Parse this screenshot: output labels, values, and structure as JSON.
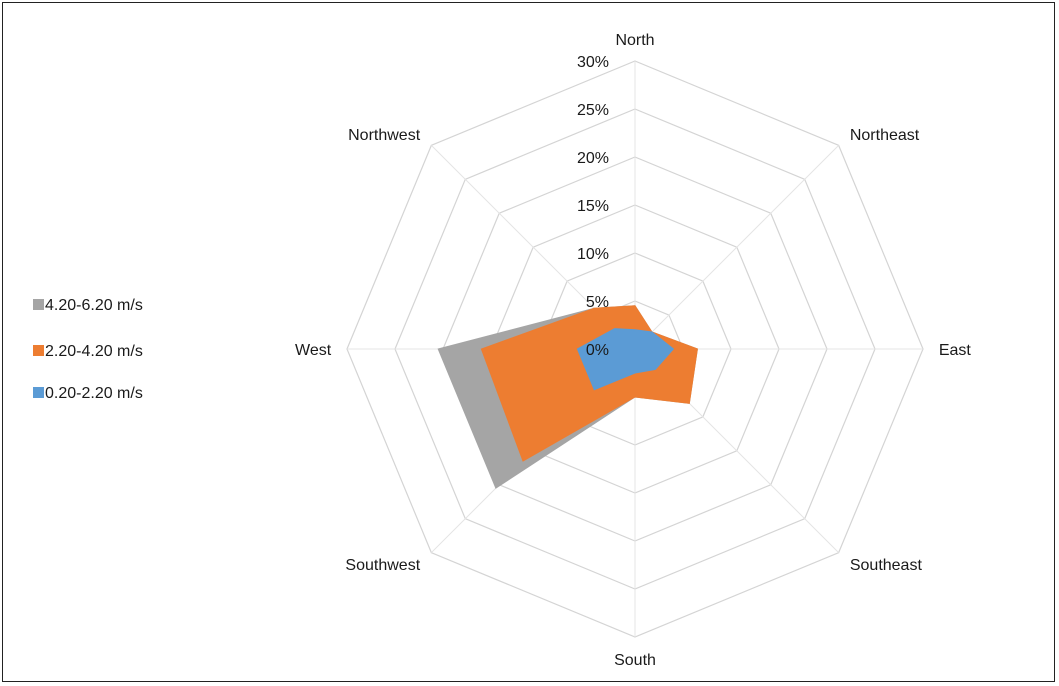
{
  "chart_data": {
    "type": "radar",
    "subtype": "filled",
    "directions": [
      "North",
      "Northeast",
      "East",
      "Southeast",
      "South",
      "Southwest",
      "West",
      "Northwest"
    ],
    "radial_axis": {
      "ticks": [
        0,
        5,
        10,
        15,
        20,
        25,
        30
      ],
      "tick_labels": [
        "0%",
        "5%",
        "10%",
        "15%",
        "20%",
        "25%",
        "30%"
      ],
      "range": [
        0,
        30
      ],
      "unit": "%"
    },
    "grid": true,
    "legend_position": "left",
    "series": [
      {
        "name": "4.20-6.20 m/s",
        "color": "#a5a5a5",
        "values": [
          4.5,
          2.5,
          6.5,
          8.0,
          5.0,
          20.5,
          20.5,
          6.0
        ]
      },
      {
        "name": "2.20-4.20 m/s",
        "color": "#ed7d31",
        "values": [
          4.5,
          2.5,
          6.5,
          8.0,
          5.0,
          16.5,
          16.0,
          6.0
        ]
      },
      {
        "name": "0.20-2.20 m/s",
        "color": "#5b9bd5",
        "values": [
          2.0,
          2.5,
          4.0,
          3.0,
          2.5,
          6.0,
          6.0,
          3.0
        ]
      }
    ]
  }
}
